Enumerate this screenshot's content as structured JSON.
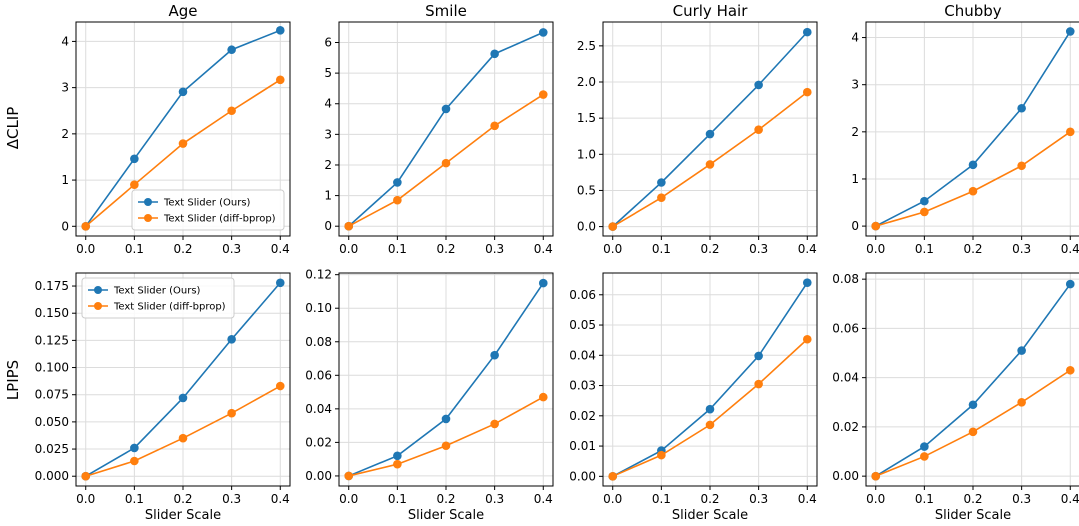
{
  "colors": {
    "ours": "#1f77b4",
    "diff": "#ff7f0e"
  },
  "chart_data": [
    {
      "type": "line",
      "title": "Age",
      "xlabel": "",
      "ylabel": "ΔCLIP",
      "x": [
        0.0,
        0.1,
        0.2,
        0.3,
        0.4
      ],
      "x_ticks": [
        "0.0",
        "0.1",
        "0.2",
        "0.3",
        "0.4"
      ],
      "xlim": [
        -0.02,
        0.42
      ],
      "ylim": [
        -0.21,
        4.42
      ],
      "y_ticks": [
        "0",
        "1",
        "2",
        "3",
        "4"
      ],
      "y_tick_values": [
        0,
        1,
        2,
        3,
        4
      ],
      "legend": {
        "location": "lower-right",
        "entries": [
          "Text Slider (Ours)",
          "Text Slider (diff-bprop)"
        ]
      },
      "series": [
        {
          "name": "Text Slider (Ours)",
          "values": [
            0.0,
            1.46,
            2.91,
            3.82,
            4.24
          ]
        },
        {
          "name": "Text Slider (diff-bprop)",
          "values": [
            0.0,
            0.9,
            1.79,
            2.5,
            3.17
          ]
        }
      ]
    },
    {
      "type": "line",
      "title": "Smile",
      "xlabel": "",
      "ylabel": "",
      "x": [
        0.0,
        0.1,
        0.2,
        0.3,
        0.4
      ],
      "x_ticks": [
        "0.0",
        "0.1",
        "0.2",
        "0.3",
        "0.4"
      ],
      "xlim": [
        -0.02,
        0.42
      ],
      "ylim": [
        -0.32,
        6.67
      ],
      "y_ticks": [
        "0",
        "1",
        "2",
        "3",
        "4",
        "5",
        "6"
      ],
      "y_tick_values": [
        0,
        1,
        2,
        3,
        4,
        5,
        6
      ],
      "series": [
        {
          "name": "Text Slider (Ours)",
          "values": [
            0.0,
            1.43,
            3.83,
            5.63,
            6.33
          ]
        },
        {
          "name": "Text Slider (diff-bprop)",
          "values": [
            0.0,
            0.85,
            2.06,
            3.28,
            4.3
          ]
        }
      ]
    },
    {
      "type": "line",
      "title": "Curly Hair",
      "xlabel": "",
      "ylabel": "",
      "x": [
        0.0,
        0.1,
        0.2,
        0.3,
        0.4
      ],
      "x_ticks": [
        "0.0",
        "0.1",
        "0.2",
        "0.3",
        "0.4"
      ],
      "xlim": [
        -0.02,
        0.42
      ],
      "ylim": [
        -0.13,
        2.83
      ],
      "y_ticks": [
        "0.0",
        "0.5",
        "1.0",
        "1.5",
        "2.0",
        "2.5"
      ],
      "y_tick_values": [
        0,
        0.5,
        1.0,
        1.5,
        2.0,
        2.5
      ],
      "series": [
        {
          "name": "Text Slider (Ours)",
          "values": [
            0.0,
            0.61,
            1.28,
            1.96,
            2.69
          ]
        },
        {
          "name": "Text Slider (diff-bprop)",
          "values": [
            0.0,
            0.4,
            0.86,
            1.34,
            1.86
          ]
        }
      ]
    },
    {
      "type": "line",
      "title": "Chubby",
      "xlabel": "",
      "ylabel": "",
      "x": [
        0.0,
        0.1,
        0.2,
        0.3,
        0.4
      ],
      "x_ticks": [
        "0.0",
        "0.1",
        "0.2",
        "0.3",
        "0.4"
      ],
      "xlim": [
        -0.02,
        0.42
      ],
      "ylim": [
        -0.21,
        4.33
      ],
      "y_ticks": [
        "0",
        "1",
        "2",
        "3",
        "4"
      ],
      "y_tick_values": [
        0,
        1,
        2,
        3,
        4
      ],
      "series": [
        {
          "name": "Text Slider (Ours)",
          "values": [
            0.0,
            0.53,
            1.3,
            2.5,
            4.13
          ]
        },
        {
          "name": "Text Slider (diff-bprop)",
          "values": [
            0.0,
            0.3,
            0.74,
            1.28,
            2.0
          ]
        }
      ]
    },
    {
      "type": "line",
      "title": "",
      "xlabel": "Slider Scale",
      "ylabel": "LPIPS",
      "x": [
        0.0,
        0.1,
        0.2,
        0.3,
        0.4
      ],
      "x_ticks": [
        "0.0",
        "0.1",
        "0.2",
        "0.3",
        "0.4"
      ],
      "xlim": [
        -0.02,
        0.42
      ],
      "ylim": [
        -0.009,
        0.187
      ],
      "y_ticks": [
        "0.000",
        "0.025",
        "0.050",
        "0.075",
        "0.100",
        "0.125",
        "0.150",
        "0.175"
      ],
      "y_tick_values": [
        0,
        0.025,
        0.05,
        0.075,
        0.1,
        0.125,
        0.15,
        0.175
      ],
      "legend": {
        "location": "upper-left",
        "entries": [
          "Text Slider (Ours)",
          "Text Slider (diff-bprop)"
        ]
      },
      "series": [
        {
          "name": "Text Slider (Ours)",
          "values": [
            0.0,
            0.026,
            0.072,
            0.126,
            0.178
          ]
        },
        {
          "name": "Text Slider (diff-bprop)",
          "values": [
            0.0,
            0.014,
            0.035,
            0.058,
            0.083
          ]
        }
      ]
    },
    {
      "type": "line",
      "title": "",
      "xlabel": "Slider Scale",
      "ylabel": "",
      "x": [
        0.0,
        0.1,
        0.2,
        0.3,
        0.4
      ],
      "x_ticks": [
        "0.0",
        "0.1",
        "0.2",
        "0.3",
        "0.4"
      ],
      "xlim": [
        -0.02,
        0.42
      ],
      "ylim": [
        -0.006,
        0.121
      ],
      "y_ticks": [
        "0.00",
        "0.02",
        "0.04",
        "0.06",
        "0.08",
        "0.10",
        "0.12"
      ],
      "y_tick_values": [
        0,
        0.02,
        0.04,
        0.06,
        0.08,
        0.1,
        0.12
      ],
      "series": [
        {
          "name": "Text Slider (Ours)",
          "values": [
            0.0,
            0.012,
            0.034,
            0.072,
            0.115
          ]
        },
        {
          "name": "Text Slider (diff-bprop)",
          "values": [
            0.0,
            0.007,
            0.018,
            0.031,
            0.047
          ]
        }
      ]
    },
    {
      "type": "line",
      "title": "",
      "xlabel": "Slider Scale",
      "ylabel": "",
      "x": [
        0.0,
        0.1,
        0.2,
        0.3,
        0.4
      ],
      "x_ticks": [
        "0.0",
        "0.1",
        "0.2",
        "0.3",
        "0.4"
      ],
      "xlim": [
        -0.02,
        0.42
      ],
      "ylim": [
        -0.0032,
        0.0672
      ],
      "y_ticks": [
        "0.00",
        "0.01",
        "0.02",
        "0.03",
        "0.04",
        "0.05",
        "0.06"
      ],
      "y_tick_values": [
        0,
        0.01,
        0.02,
        0.03,
        0.04,
        0.05,
        0.06
      ],
      "series": [
        {
          "name": "Text Slider (Ours)",
          "values": [
            0.0,
            0.0085,
            0.0222,
            0.0398,
            0.064
          ]
        },
        {
          "name": "Text Slider (diff-bprop)",
          "values": [
            0.0,
            0.007,
            0.017,
            0.0305,
            0.0453
          ]
        }
      ]
    },
    {
      "type": "line",
      "title": "",
      "xlabel": "Slider Scale",
      "ylabel": "",
      "x": [
        0.0,
        0.1,
        0.2,
        0.3,
        0.4
      ],
      "x_ticks": [
        "0.0",
        "0.1",
        "0.2",
        "0.3",
        "0.4"
      ],
      "xlim": [
        -0.02,
        0.42
      ],
      "ylim": [
        -0.004,
        0.0825
      ],
      "y_ticks": [
        "0.00",
        "0.02",
        "0.04",
        "0.06",
        "0.08"
      ],
      "y_tick_values": [
        0,
        0.02,
        0.04,
        0.06,
        0.08
      ],
      "series": [
        {
          "name": "Text Slider (Ours)",
          "values": [
            0.0,
            0.012,
            0.029,
            0.051,
            0.078
          ]
        },
        {
          "name": "Text Slider (diff-bprop)",
          "values": [
            0.0,
            0.008,
            0.018,
            0.03,
            0.043
          ]
        }
      ]
    }
  ]
}
